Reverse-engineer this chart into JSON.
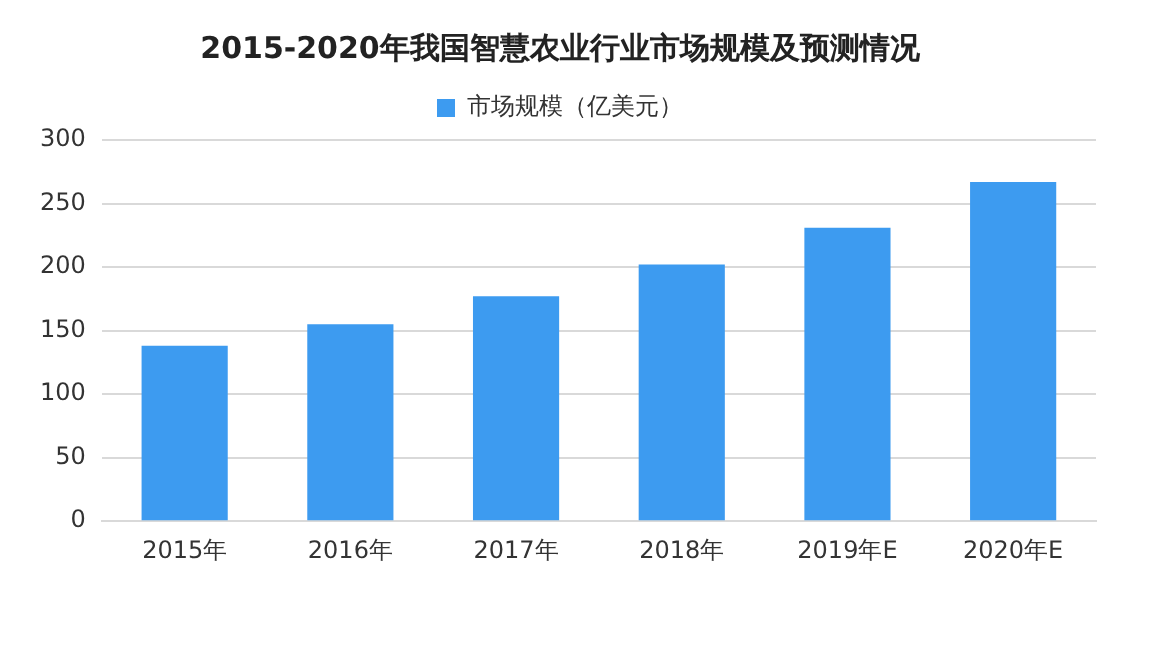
{
  "chart_data": {
    "type": "bar",
    "title": "2015-2020年我国智慧农业行业市场规模及预测情况",
    "categories": [
      "2015年",
      "2016年",
      "2017年",
      "2018年",
      "2019年E",
      "2020年E"
    ],
    "series": [
      {
        "name": "市场规模（亿美元）",
        "color": "#3d9bf0",
        "values": [
          138,
          155,
          177,
          202,
          231,
          267
        ]
      }
    ],
    "ylim": [
      0,
      300
    ],
    "yticks": [
      0,
      50,
      100,
      150,
      200,
      250,
      300
    ],
    "grid": "y",
    "legend": "top"
  }
}
